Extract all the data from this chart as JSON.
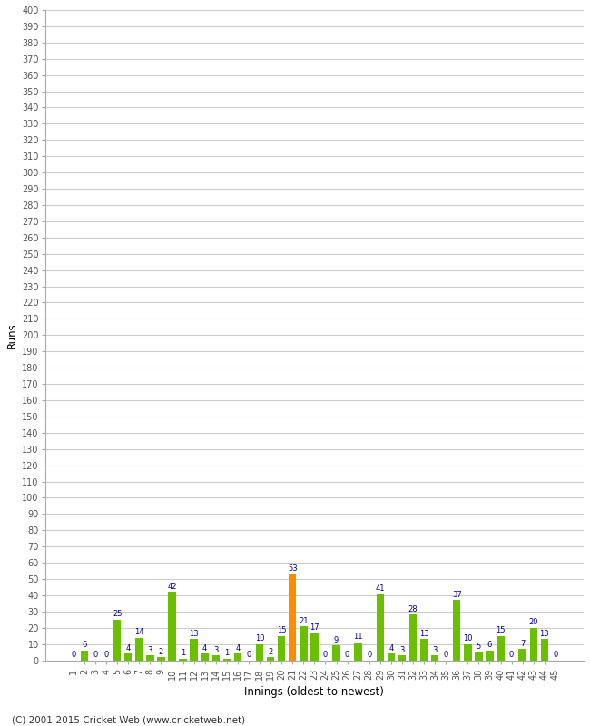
{
  "innings": [
    1,
    2,
    3,
    4,
    5,
    6,
    7,
    8,
    9,
    10,
    11,
    12,
    13,
    14,
    15,
    16,
    17,
    18,
    19,
    20,
    21,
    22,
    23,
    24,
    25,
    26,
    27,
    28,
    29,
    30,
    31,
    32,
    33,
    34,
    35,
    36,
    37,
    38,
    39,
    40,
    41,
    42,
    43,
    44,
    45
  ],
  "values": [
    0,
    6,
    0,
    0,
    25,
    4,
    14,
    3,
    2,
    42,
    1,
    13,
    4,
    3,
    1,
    4,
    0,
    10,
    2,
    15,
    53,
    21,
    17,
    0,
    9,
    0,
    11,
    0,
    41,
    4,
    3,
    28,
    13,
    3,
    0,
    37,
    10,
    5,
    6,
    15,
    0,
    7,
    20,
    13,
    0
  ],
  "colors": [
    "#6abf00",
    "#6abf00",
    "#6abf00",
    "#6abf00",
    "#6abf00",
    "#6abf00",
    "#6abf00",
    "#6abf00",
    "#6abf00",
    "#6abf00",
    "#6abf00",
    "#6abf00",
    "#6abf00",
    "#6abf00",
    "#6abf00",
    "#6abf00",
    "#6abf00",
    "#6abf00",
    "#6abf00",
    "#6abf00",
    "#ff8c00",
    "#6abf00",
    "#6abf00",
    "#6abf00",
    "#6abf00",
    "#6abf00",
    "#6abf00",
    "#6abf00",
    "#6abf00",
    "#6abf00",
    "#6abf00",
    "#6abf00",
    "#6abf00",
    "#6abf00",
    "#6abf00",
    "#6abf00",
    "#6abf00",
    "#6abf00",
    "#6abf00",
    "#6abf00",
    "#6abf00",
    "#6abf00",
    "#6abf00",
    "#6abf00",
    "#6abf00"
  ],
  "ylabel": "Runs",
  "xlabel": "Innings (oldest to newest)",
  "ylim": [
    0,
    400
  ],
  "yticks": [
    0,
    10,
    20,
    30,
    40,
    50,
    60,
    70,
    80,
    90,
    100,
    110,
    120,
    130,
    140,
    150,
    160,
    170,
    180,
    190,
    200,
    210,
    220,
    230,
    240,
    250,
    260,
    270,
    280,
    290,
    300,
    310,
    320,
    330,
    340,
    350,
    360,
    370,
    380,
    390,
    400
  ],
  "footer": "(C) 2001-2015 Cricket Web (www.cricketweb.net)",
  "label_color": "#00008b",
  "grid_color": "#cccccc",
  "bg_color": "#ffffff",
  "tick_color": "#555555",
  "spine_color": "#aaaaaa"
}
